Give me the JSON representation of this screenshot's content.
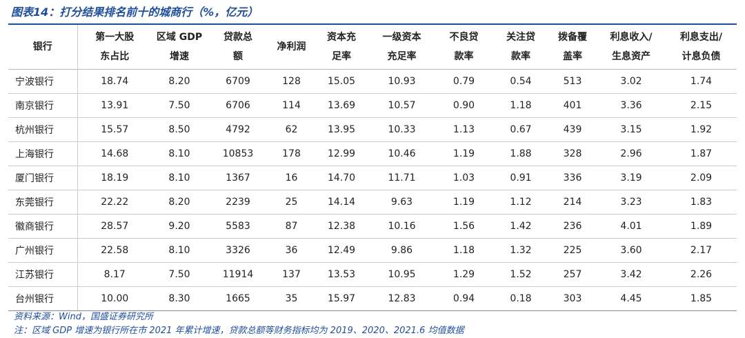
{
  "title": "图表14：打分结果排名前十的城商行（%，亿元）",
  "table": {
    "header": [
      [
        "银行"
      ],
      [
        "第一大股",
        "东占比"
      ],
      [
        "区域 GDP",
        "增速"
      ],
      [
        "贷款总",
        "额"
      ],
      [
        "净利润"
      ],
      [
        "资本充",
        "足率"
      ],
      [
        "一级资本",
        "充足率"
      ],
      [
        "不良贷",
        "款率"
      ],
      [
        "关注贷",
        "款率"
      ],
      [
        "拨备覆",
        "盖率"
      ],
      [
        "利息收入/",
        "生息资产"
      ],
      [
        "利息支出/",
        "计息负债"
      ]
    ],
    "rows": [
      [
        "宁波银行",
        "18.74",
        "8.20",
        "6709",
        "128",
        "15.05",
        "10.93",
        "0.79",
        "0.54",
        "513",
        "3.02",
        "1.74"
      ],
      [
        "南京银行",
        "13.91",
        "7.50",
        "6706",
        "114",
        "13.69",
        "10.57",
        "0.90",
        "1.18",
        "401",
        "3.36",
        "2.15"
      ],
      [
        "杭州银行",
        "15.57",
        "8.50",
        "4792",
        "62",
        "13.95",
        "10.33",
        "1.13",
        "0.67",
        "439",
        "3.15",
        "1.92"
      ],
      [
        "上海银行",
        "14.68",
        "8.10",
        "10853",
        "178",
        "12.99",
        "10.46",
        "1.19",
        "1.88",
        "328",
        "2.96",
        "1.87"
      ],
      [
        "厦门银行",
        "18.19",
        "8.10",
        "1367",
        "16",
        "14.70",
        "11.71",
        "1.03",
        "0.91",
        "336",
        "3.19",
        "2.09"
      ],
      [
        "东莞银行",
        "22.22",
        "8.20",
        "2239",
        "25",
        "14.14",
        "9.63",
        "1.19",
        "1.12",
        "214",
        "3.23",
        "1.83"
      ],
      [
        "徽商银行",
        "28.57",
        "9.20",
        "5583",
        "87",
        "12.38",
        "10.16",
        "1.56",
        "1.42",
        "236",
        "4.01",
        "1.89"
      ],
      [
        "广州银行",
        "22.58",
        "8.10",
        "3326",
        "36",
        "12.49",
        "9.86",
        "1.18",
        "1.32",
        "225",
        "3.60",
        "2.17"
      ],
      [
        "江苏银行",
        "8.17",
        "7.50",
        "11914",
        "137",
        "13.53",
        "10.95",
        "1.29",
        "1.52",
        "257",
        "3.42",
        "2.26"
      ],
      [
        "台州银行",
        "10.00",
        "8.30",
        "1665",
        "35",
        "15.97",
        "12.83",
        "0.94",
        "0.18",
        "303",
        "4.45",
        "1.85"
      ]
    ]
  },
  "notes": [
    "资料来源：Wind，国盛证券研究所",
    "注：区域 GDP 增速为银行所在市 2021 年累计增速，贷款总额等财务指标均为 2019、2020、2021.6 均值数据"
  ]
}
